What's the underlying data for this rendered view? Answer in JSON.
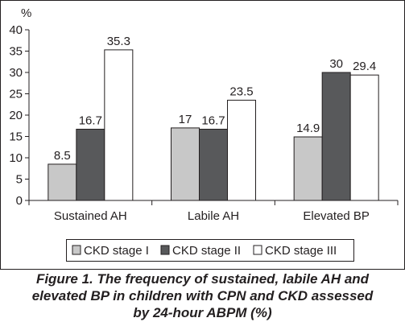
{
  "chart_data": {
    "type": "bar",
    "title": "",
    "xlabel": "",
    "ylabel": "%",
    "ylim": [
      0,
      40
    ],
    "yticks": [
      "0",
      "5",
      "10",
      "15",
      "20",
      "25",
      "30",
      "35",
      "40"
    ],
    "categories": [
      "Sustained AH",
      "Labile AH",
      "Elevated BP"
    ],
    "series": [
      {
        "name": "CKD stage I",
        "values": [
          8.5,
          17,
          14.9
        ],
        "labels": [
          "8.5",
          "17",
          "14.9"
        ],
        "color": "#c8c8c8"
      },
      {
        "name": "CKD stage II",
        "values": [
          16.7,
          16.7,
          30
        ],
        "labels": [
          "16.7",
          "16.7",
          "30"
        ],
        "color": "#58595b"
      },
      {
        "name": "CKD stage III",
        "values": [
          35.3,
          23.5,
          29.4
        ],
        "labels": [
          "35.3",
          "23.5",
          "29.4"
        ],
        "color": "#ffffff"
      }
    ],
    "grid": false,
    "legend_position": "bottom"
  },
  "caption": {
    "line1": "Figure 1. The frequency of sustained, labile AH and",
    "line2": "elevated BP in children with CPN and CKD assessed",
    "line3": "by 24-hour ABPM (%)"
  }
}
